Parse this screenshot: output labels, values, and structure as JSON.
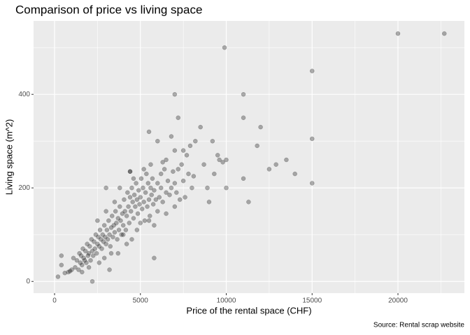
{
  "chart_data": {
    "type": "scatter",
    "title": "Comparison of price vs living space",
    "x_label": "Price of the rental space (CHF)",
    "y_label": "Living space (m^2)",
    "caption": "Source: Rental scrap website",
    "color": "#000000",
    "alpha": 0.3,
    "grid": true,
    "xlim": [
      -1222,
      23870
    ],
    "ylim": [
      -25,
      557
    ],
    "xticks": [
      0,
      5000,
      10000,
      15000,
      20000
    ],
    "yticks": [
      0,
      200,
      400
    ],
    "x_minor_grid": [
      2500,
      7500,
      12500,
      17500,
      22500
    ],
    "y_minor_grid": [
      100,
      300,
      500
    ],
    "x": [
      22700,
      20000,
      15000,
      15000,
      15000,
      9900,
      11000,
      7000,
      11000,
      7200,
      12000,
      8500,
      5500,
      6800,
      9200,
      8200,
      7900,
      11800,
      13500,
      12900,
      12500,
      14000,
      11000,
      11300,
      10000,
      9000,
      8900,
      9500,
      9600,
      9800,
      10000,
      9300,
      8700,
      7700,
      7500,
      7000,
      6500,
      6000,
      6200,
      5800,
      3000,
      3200,
      2200,
      200,
      400,
      400,
      900,
      4400,
      1200,
      1300,
      1400,
      1450,
      1500,
      1550,
      1600,
      1650,
      1700,
      1750,
      1800,
      1850,
      1900,
      1950,
      2000,
      2050,
      2100,
      2150,
      2200,
      2250,
      2300,
      2350,
      2400,
      2450,
      2500,
      2550,
      2600,
      2650,
      2700,
      2750,
      2800,
      2850,
      2900,
      2950,
      3000,
      3050,
      3100,
      3150,
      3200,
      3250,
      3300,
      3350,
      3400,
      3450,
      3500,
      3550,
      3600,
      3650,
      3700,
      3750,
      3800,
      3850,
      3900,
      3950,
      4000,
      4050,
      4100,
      4150,
      4200,
      4250,
      4300,
      4350,
      4400,
      4450,
      4500,
      4550,
      4600,
      4650,
      4700,
      4750,
      4800,
      4850,
      4900,
      4950,
      5000,
      5050,
      5100,
      5150,
      5200,
      5250,
      5300,
      5350,
      5400,
      5450,
      5500,
      5550,
      5600,
      5650,
      5700,
      5750,
      5800,
      5900,
      6000,
      6100,
      6200,
      6300,
      6400,
      6500,
      6600,
      6700,
      6800,
      6900,
      7000,
      7100,
      7300,
      7500,
      7600,
      7800,
      8000,
      8100,
      600,
      800,
      1000,
      1100,
      3700,
      4500,
      4000,
      2900,
      5000,
      6000,
      4800,
      3300,
      2000,
      2600,
      1600,
      5500,
      6500,
      7000,
      4200,
      5800,
      3000,
      3500,
      2500,
      3800,
      4400,
      5200,
      5600,
      6300,
      4600,
      7400,
      7200
    ],
    "values": [
      530,
      530,
      450,
      305,
      210,
      500,
      400,
      400,
      350,
      350,
      330,
      330,
      320,
      310,
      300,
      300,
      290,
      290,
      260,
      250,
      240,
      230,
      220,
      170,
      200,
      170,
      200,
      270,
      260,
      255,
      260,
      230,
      250,
      270,
      280,
      280,
      260,
      300,
      230,
      50,
      200,
      25,
      0,
      10,
      55,
      35,
      22,
      235,
      30,
      45,
      25,
      60,
      40,
      55,
      35,
      70,
      50,
      45,
      65,
      40,
      80,
      55,
      60,
      75,
      45,
      90,
      65,
      55,
      85,
      70,
      100,
      60,
      80,
      95,
      75,
      110,
      90,
      70,
      100,
      85,
      120,
      95,
      80,
      110,
      90,
      130,
      100,
      75,
      115,
      140,
      95,
      120,
      105,
      150,
      125,
      90,
      135,
      110,
      160,
      130,
      100,
      145,
      120,
      175,
      150,
      110,
      140,
      190,
      160,
      125,
      180,
      150,
      200,
      170,
      135,
      185,
      160,
      210,
      175,
      145,
      195,
      165,
      180,
      220,
      155,
      200,
      170,
      130,
      190,
      230,
      160,
      210,
      175,
      140,
      200,
      185,
      220,
      165,
      195,
      175,
      210,
      180,
      200,
      170,
      240,
      190,
      215,
      185,
      200,
      235,
      210,
      190,
      175,
      215,
      180,
      230,
      200,
      225,
      18,
      20,
      25,
      50,
      60,
      90,
      100,
      50,
      125,
      150,
      110,
      60,
      30,
      40,
      20,
      130,
      145,
      160,
      80,
      120,
      150,
      170,
      130,
      200,
      235,
      240,
      250,
      255,
      220,
      250,
      240
    ]
  }
}
